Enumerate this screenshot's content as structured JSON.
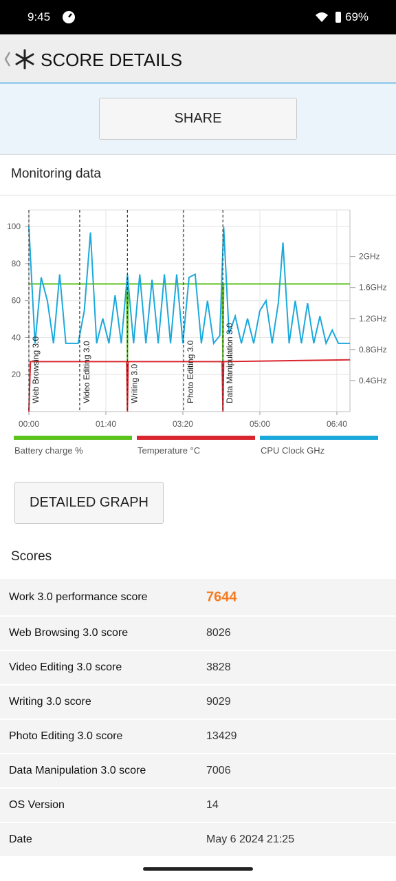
{
  "status_bar": {
    "time": "9:45",
    "battery": "69%"
  },
  "header": {
    "title": "SCORE DETAILS"
  },
  "share_button": "SHARE",
  "monitoring": {
    "title": "Monitoring data",
    "chart": {
      "type": "line",
      "xlim": [
        0,
        417
      ],
      "xticks": [
        {
          "value": 0,
          "label": "00:00"
        },
        {
          "value": 100,
          "label": "01:40"
        },
        {
          "value": 200,
          "label": "03:20"
        },
        {
          "value": 300,
          "label": "05:00"
        },
        {
          "value": 400,
          "label": "06:40"
        }
      ],
      "ylim": [
        0,
        109
      ],
      "yticks": [
        20,
        40,
        60,
        80,
        100
      ],
      "y2lim": [
        0,
        2.6
      ],
      "y2ticks": [
        {
          "value": 0.4,
          "label": "0.4GHz"
        },
        {
          "value": 0.8,
          "label": "0.8GHz"
        },
        {
          "value": 1.2,
          "label": "1.2GHz"
        },
        {
          "value": 1.6,
          "label": "1.6GHz"
        },
        {
          "value": 2,
          "label": "2GHz"
        }
      ],
      "grid": true,
      "events": [
        {
          "label": "Web Browsing 3.0",
          "x": 0
        },
        {
          "label": "Video Editing 3.0",
          "x": 66
        },
        {
          "label": "Writing 3.0",
          "x": 128
        },
        {
          "label": "Photo Editing 3.0",
          "x": 201
        },
        {
          "label": "Data Manipulation 3.0",
          "x": 252
        }
      ],
      "series": [
        {
          "name": "Battery charge %",
          "color": "#5cc21c",
          "x": [
            0,
            127,
            128,
            129,
            251,
            252,
            253,
            417
          ],
          "values": [
            69,
            69,
            27,
            69,
            69,
            27,
            69,
            69
          ]
        },
        {
          "name": "Temperature °C",
          "color": "#d9262e",
          "x": [
            0,
            2,
            127,
            128,
            129,
            251,
            252,
            253,
            417
          ],
          "values": [
            0,
            27,
            27,
            0,
            27,
            27,
            0,
            27,
            28
          ]
        },
        {
          "name": "CPU Clock GHz",
          "color": "#1ba9dc",
          "axis": "y2",
          "x": [
            0,
            8,
            16,
            24,
            32,
            40,
            48,
            56,
            64,
            72,
            80,
            88,
            96,
            104,
            112,
            120,
            128,
            136,
            144,
            152,
            160,
            168,
            176,
            184,
            192,
            200,
            208,
            216,
            224,
            232,
            240,
            248,
            253,
            260,
            268,
            276,
            284,
            292,
            300,
            308,
            316,
            324,
            330,
            338,
            346,
            354,
            362,
            370,
            378,
            386,
            394,
            402,
            410,
            417
          ],
          "values": [
            2.38,
            0.88,
            1.73,
            1.43,
            0.88,
            1.77,
            0.88,
            0.88,
            0.88,
            1.3,
            2.31,
            0.88,
            1.2,
            0.88,
            1.5,
            0.88,
            1.77,
            0.88,
            1.77,
            0.88,
            1.7,
            0.88,
            1.77,
            0.88,
            1.77,
            0.88,
            1.73,
            1.77,
            0.88,
            1.43,
            0.88,
            0.98,
            2.38,
            1.0,
            1.23,
            0.88,
            1.2,
            0.88,
            1.3,
            1.43,
            0.88,
            1.4,
            2.18,
            0.88,
            1.43,
            0.88,
            1.4,
            0.88,
            1.23,
            0.88,
            1.05,
            0.88,
            0.88,
            0.88
          ]
        }
      ]
    }
  },
  "detailed_button": "DETAILED GRAPH",
  "scores": {
    "title": "Scores",
    "rows": [
      [
        "Work 3.0 performance score",
        "7644"
      ],
      [
        "Web Browsing 3.0 score",
        "8026"
      ],
      [
        "Video Editing 3.0 score",
        "3828"
      ],
      [
        "Writing 3.0 score",
        "9029"
      ],
      [
        "Photo Editing 3.0 score",
        "13429"
      ],
      [
        "Data Manipulation 3.0 score",
        "7006"
      ],
      [
        "OS Version",
        "14"
      ],
      [
        "Date",
        "May 6 2024 21:25"
      ]
    ]
  }
}
